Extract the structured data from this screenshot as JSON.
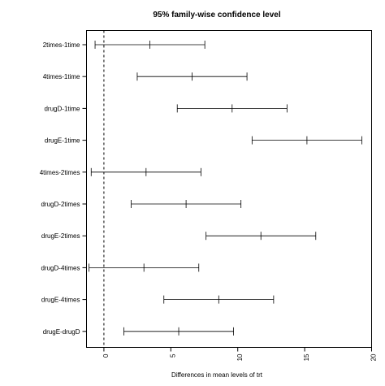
{
  "chart_data": {
    "type": "interval",
    "title": "95% family-wise confidence level",
    "xlabel": "Differences in mean levels of trt",
    "ylabel": "",
    "xlim": [
      -1.3,
      20
    ],
    "x_ticks": [
      0,
      5,
      10,
      15,
      20
    ],
    "reference_line": 0,
    "grid": false,
    "comparisons": [
      {
        "label": "2times-1time",
        "diff": 3.44,
        "lwr": -0.66,
        "upr": 7.54
      },
      {
        "label": "4times-1time",
        "diff": 6.59,
        "lwr": 2.49,
        "upr": 10.69
      },
      {
        "label": "drugD-1time",
        "diff": 9.58,
        "lwr": 5.48,
        "upr": 13.68
      },
      {
        "label": "drugE-1time",
        "diff": 15.17,
        "lwr": 11.07,
        "upr": 19.27
      },
      {
        "label": "4times-2times",
        "diff": 3.15,
        "lwr": -0.95,
        "upr": 7.25
      },
      {
        "label": "drugD-2times",
        "diff": 6.14,
        "lwr": 2.04,
        "upr": 10.24
      },
      {
        "label": "drugE-2times",
        "diff": 11.73,
        "lwr": 7.63,
        "upr": 15.83
      },
      {
        "label": "drugD-4times",
        "diff": 2.99,
        "lwr": -1.11,
        "upr": 7.09
      },
      {
        "label": "drugE-4times",
        "diff": 8.58,
        "lwr": 4.48,
        "upr": 12.68
      },
      {
        "label": "drugE-drugD",
        "diff": 5.59,
        "lwr": 1.49,
        "upr": 9.69
      }
    ]
  }
}
